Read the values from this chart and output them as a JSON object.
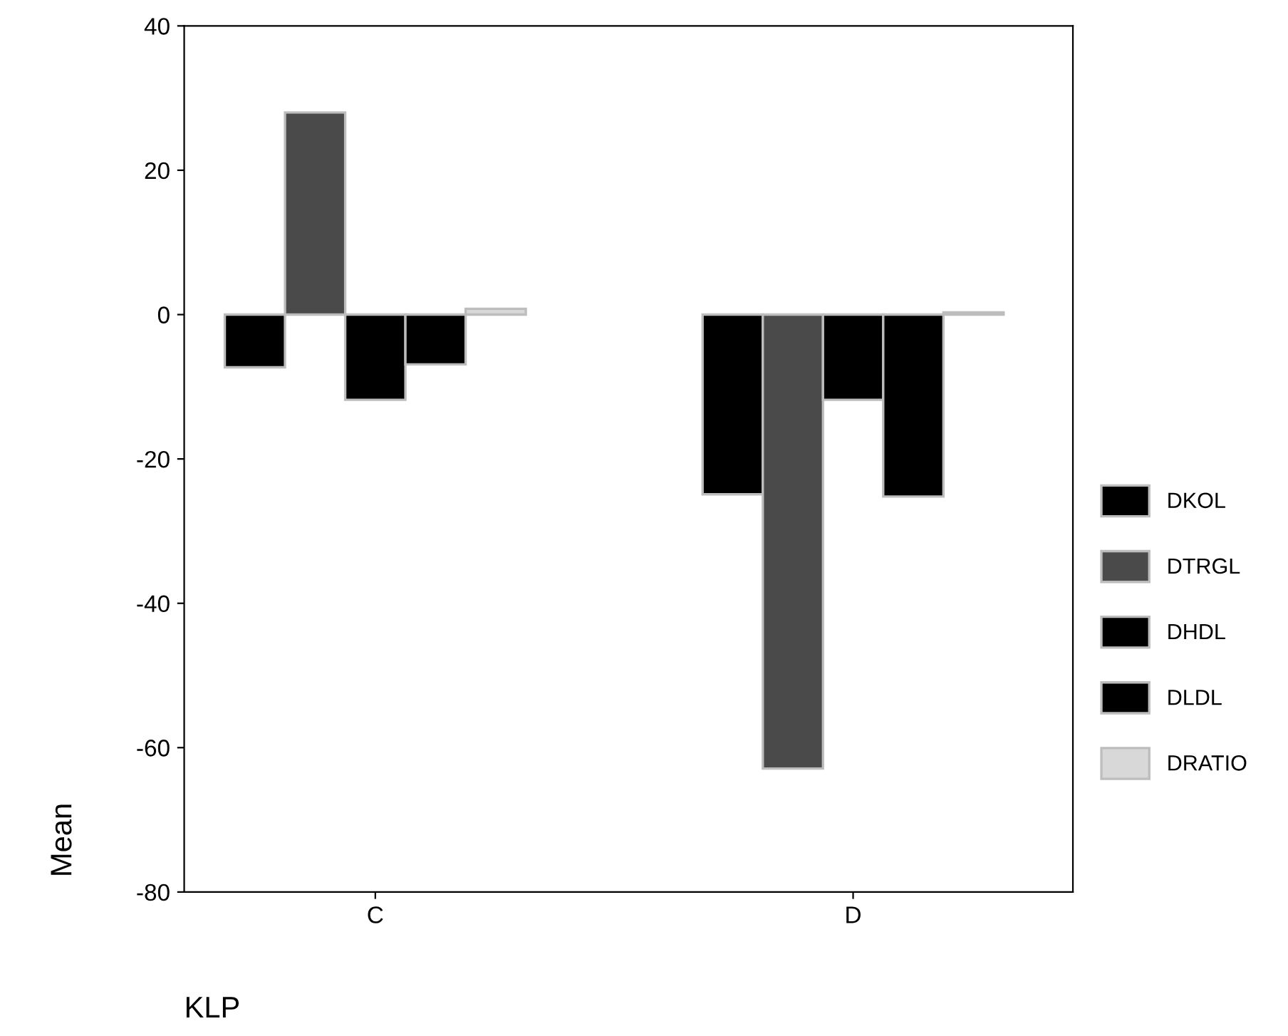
{
  "chart_data": {
    "type": "bar",
    "xlabel": "KLP",
    "ylabel": "Mean",
    "categories": [
      "C",
      "D"
    ],
    "series": [
      {
        "name": "DKOL",
        "color": "#000000",
        "values": [
          -7.3,
          -24.9
        ]
      },
      {
        "name": "DTRGL",
        "color": "#4a4a4a",
        "values": [
          28,
          -62.9
        ]
      },
      {
        "name": "DHDL",
        "color": "#000000",
        "values": [
          -11.8,
          -11.8
        ]
      },
      {
        "name": "DLDL",
        "color": "#000000",
        "values": [
          -6.9,
          -25.2
        ]
      },
      {
        "name": "DRATIO",
        "color": "#d8d8d8",
        "values": [
          0.8,
          0.3
        ]
      }
    ],
    "ylim": [
      -80,
      40
    ],
    "yticks": [
      -80,
      -60,
      -40,
      -20,
      0,
      20,
      40
    ],
    "grid": false,
    "legend": "right"
  }
}
